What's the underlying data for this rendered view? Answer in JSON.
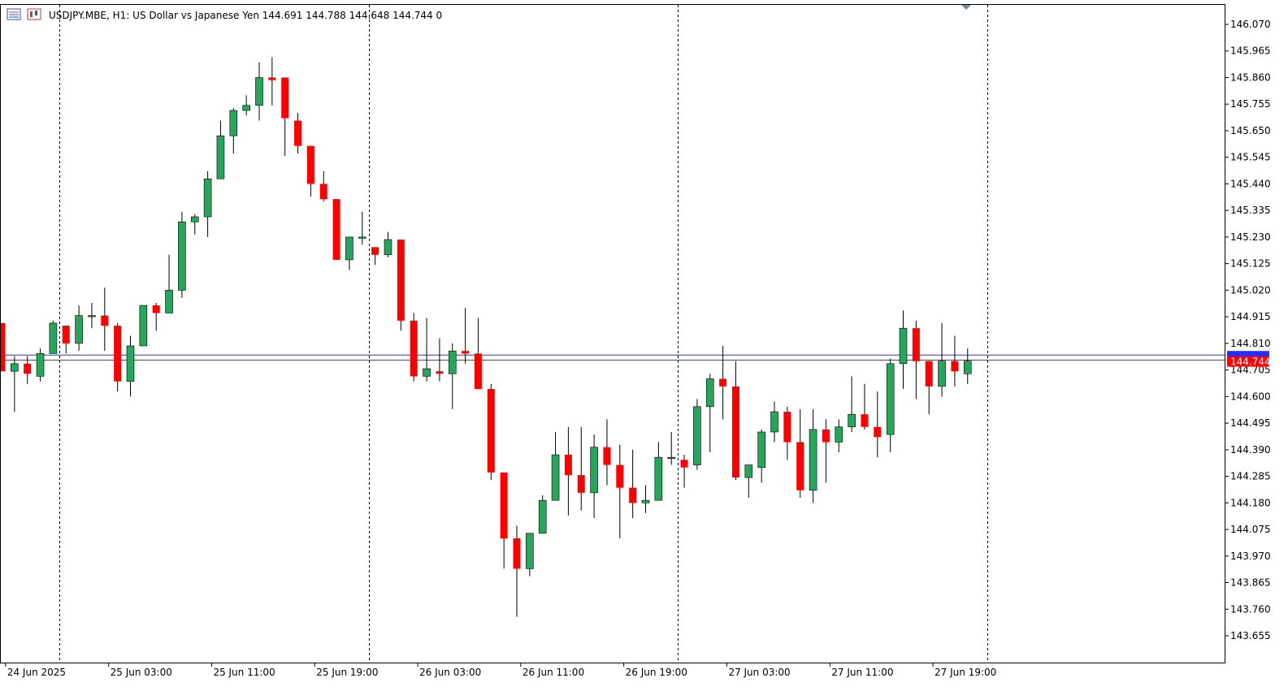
{
  "header": {
    "symbol_info": "USDJPY.MBE, H1:  US Dollar vs Japanese Yen  144.691 144.788 144.648 144.744  0",
    "icon_left": "chart-list-icon",
    "icon_right": "chart-type-icon"
  },
  "colors": {
    "bull": "#26a65b",
    "bear": "#ff0000",
    "bid_line": "#ff0000",
    "ask_line": "#1f2fff",
    "wick": "#000000",
    "grid_separator": "#000000",
    "frame": "#000000"
  },
  "price_tags": {
    "ask_value": "144.764",
    "bid_value": "144.744"
  },
  "chart_data": {
    "type": "candlestick",
    "title": "USDJPY.MBE, H1",
    "ylim": [
      143.56,
      146.13
    ],
    "y_ticks": [
      "146.070",
      "145.965",
      "145.860",
      "145.755",
      "145.650",
      "145.545",
      "145.440",
      "145.335",
      "145.230",
      "145.125",
      "145.020",
      "144.915",
      "144.810",
      "144.705",
      "144.600",
      "144.495",
      "144.390",
      "144.285",
      "144.180",
      "144.075",
      "143.970",
      "143.865",
      "143.760",
      "143.655"
    ],
    "x_ticks": [
      {
        "label": "24 Jun 2025",
        "index": 1
      },
      {
        "label": "25 Jun 03:00",
        "index": 9
      },
      {
        "label": "25 Jun 11:00",
        "index": 17
      },
      {
        "label": "25 Jun 19:00",
        "index": 25
      },
      {
        "label": "26 Jun 03:00",
        "index": 33
      },
      {
        "label": "26 Jun 11:00",
        "index": 41
      },
      {
        "label": "26 Jun 19:00",
        "index": 49
      },
      {
        "label": "27 Jun 03:00",
        "index": 57
      },
      {
        "label": "27 Jun 11:00",
        "index": 65
      },
      {
        "label": "27 Jun 19:00",
        "index": 73
      }
    ],
    "day_separators": [
      4.5,
      28.5,
      52.5,
      76.5
    ],
    "bid": 144.744,
    "ask": 144.764,
    "candles": [
      {
        "o": 144.89,
        "h": 144.89,
        "l": 144.7,
        "c": 144.7
      },
      {
        "o": 144.7,
        "h": 144.76,
        "l": 144.54,
        "c": 144.73
      },
      {
        "o": 144.73,
        "h": 144.76,
        "l": 144.65,
        "c": 144.69
      },
      {
        "o": 144.68,
        "h": 144.79,
        "l": 144.66,
        "c": 144.77
      },
      {
        "o": 144.77,
        "h": 144.9,
        "l": 144.77,
        "c": 144.89
      },
      {
        "o": 144.88,
        "h": 144.88,
        "l": 144.77,
        "c": 144.81
      },
      {
        "o": 144.81,
        "h": 144.96,
        "l": 144.78,
        "c": 144.92
      },
      {
        "o": 144.92,
        "h": 144.97,
        "l": 144.87,
        "c": 144.92
      },
      {
        "o": 144.92,
        "h": 145.03,
        "l": 144.78,
        "c": 144.88
      },
      {
        "o": 144.88,
        "h": 144.89,
        "l": 144.62,
        "c": 144.66
      },
      {
        "o": 144.66,
        "h": 144.84,
        "l": 144.6,
        "c": 144.8
      },
      {
        "o": 144.8,
        "h": 144.96,
        "l": 144.8,
        "c": 144.96
      },
      {
        "o": 144.96,
        "h": 144.97,
        "l": 144.86,
        "c": 144.93
      },
      {
        "o": 144.93,
        "h": 145.16,
        "l": 144.93,
        "c": 145.02
      },
      {
        "o": 145.02,
        "h": 145.33,
        "l": 144.99,
        "c": 145.29
      },
      {
        "o": 145.29,
        "h": 145.32,
        "l": 145.24,
        "c": 145.31
      },
      {
        "o": 145.31,
        "h": 145.49,
        "l": 145.23,
        "c": 145.46
      },
      {
        "o": 145.46,
        "h": 145.69,
        "l": 145.46,
        "c": 145.63
      },
      {
        "o": 145.63,
        "h": 145.74,
        "l": 145.56,
        "c": 145.73
      },
      {
        "o": 145.73,
        "h": 145.79,
        "l": 145.71,
        "c": 145.75
      },
      {
        "o": 145.75,
        "h": 145.92,
        "l": 145.69,
        "c": 145.86
      },
      {
        "o": 145.86,
        "h": 145.94,
        "l": 145.75,
        "c": 145.85
      },
      {
        "o": 145.86,
        "h": 145.86,
        "l": 145.55,
        "c": 145.7
      },
      {
        "o": 145.69,
        "h": 145.72,
        "l": 145.56,
        "c": 145.59
      },
      {
        "o": 145.59,
        "h": 145.59,
        "l": 145.39,
        "c": 145.44
      },
      {
        "o": 145.44,
        "h": 145.49,
        "l": 145.37,
        "c": 145.38
      },
      {
        "o": 145.38,
        "h": 145.38,
        "l": 145.14,
        "c": 145.14
      },
      {
        "o": 145.14,
        "h": 145.23,
        "l": 145.1,
        "c": 145.23
      },
      {
        "o": 145.23,
        "h": 145.33,
        "l": 145.2,
        "c": 145.23
      },
      {
        "o": 145.19,
        "h": 145.19,
        "l": 145.12,
        "c": 145.16
      },
      {
        "o": 145.16,
        "h": 145.25,
        "l": 145.15,
        "c": 145.22
      },
      {
        "o": 145.22,
        "h": 145.22,
        "l": 144.86,
        "c": 144.9
      },
      {
        "o": 144.9,
        "h": 144.93,
        "l": 144.66,
        "c": 144.68
      },
      {
        "o": 144.68,
        "h": 144.91,
        "l": 144.66,
        "c": 144.71
      },
      {
        "o": 144.7,
        "h": 144.83,
        "l": 144.66,
        "c": 144.69
      },
      {
        "o": 144.69,
        "h": 144.81,
        "l": 144.55,
        "c": 144.78
      },
      {
        "o": 144.78,
        "h": 144.95,
        "l": 144.73,
        "c": 144.77
      },
      {
        "o": 144.77,
        "h": 144.91,
        "l": 144.63,
        "c": 144.63
      },
      {
        "o": 144.63,
        "h": 144.65,
        "l": 144.27,
        "c": 144.3
      },
      {
        "o": 144.3,
        "h": 144.3,
        "l": 143.92,
        "c": 144.04
      },
      {
        "o": 144.04,
        "h": 144.09,
        "l": 143.73,
        "c": 143.92
      },
      {
        "o": 143.92,
        "h": 144.05,
        "l": 143.89,
        "c": 144.06
      },
      {
        "o": 144.06,
        "h": 144.21,
        "l": 144.06,
        "c": 144.19
      },
      {
        "o": 144.19,
        "h": 144.46,
        "l": 144.19,
        "c": 144.37
      },
      {
        "o": 144.37,
        "h": 144.48,
        "l": 144.13,
        "c": 144.29
      },
      {
        "o": 144.29,
        "h": 144.48,
        "l": 144.15,
        "c": 144.22
      },
      {
        "o": 144.22,
        "h": 144.45,
        "l": 144.12,
        "c": 144.4
      },
      {
        "o": 144.4,
        "h": 144.51,
        "l": 144.25,
        "c": 144.33
      },
      {
        "o": 144.33,
        "h": 144.41,
        "l": 144.04,
        "c": 144.24
      },
      {
        "o": 144.24,
        "h": 144.39,
        "l": 144.12,
        "c": 144.18
      },
      {
        "o": 144.18,
        "h": 144.25,
        "l": 144.14,
        "c": 144.19
      },
      {
        "o": 144.19,
        "h": 144.42,
        "l": 144.19,
        "c": 144.36
      },
      {
        "o": 144.36,
        "h": 144.46,
        "l": 144.33,
        "c": 144.36
      },
      {
        "o": 144.35,
        "h": 144.37,
        "l": 144.24,
        "c": 144.32
      },
      {
        "o": 144.33,
        "h": 144.59,
        "l": 144.31,
        "c": 144.56
      },
      {
        "o": 144.56,
        "h": 144.69,
        "l": 144.38,
        "c": 144.67
      },
      {
        "o": 144.67,
        "h": 144.8,
        "l": 144.51,
        "c": 144.64
      },
      {
        "o": 144.64,
        "h": 144.74,
        "l": 144.27,
        "c": 144.28
      },
      {
        "o": 144.28,
        "h": 144.33,
        "l": 144.2,
        "c": 144.33
      },
      {
        "o": 144.32,
        "h": 144.47,
        "l": 144.26,
        "c": 144.46
      },
      {
        "o": 144.46,
        "h": 144.58,
        "l": 144.42,
        "c": 144.54
      },
      {
        "o": 144.54,
        "h": 144.56,
        "l": 144.35,
        "c": 144.42
      },
      {
        "o": 144.42,
        "h": 144.55,
        "l": 144.2,
        "c": 144.23
      },
      {
        "o": 144.23,
        "h": 144.55,
        "l": 144.18,
        "c": 144.47
      },
      {
        "o": 144.47,
        "h": 144.51,
        "l": 144.26,
        "c": 144.42
      },
      {
        "o": 144.42,
        "h": 144.51,
        "l": 144.38,
        "c": 144.48
      },
      {
        "o": 144.48,
        "h": 144.68,
        "l": 144.46,
        "c": 144.53
      },
      {
        "o": 144.53,
        "h": 144.65,
        "l": 144.47,
        "c": 144.48
      },
      {
        "o": 144.48,
        "h": 144.62,
        "l": 144.36,
        "c": 144.44
      },
      {
        "o": 144.45,
        "h": 144.75,
        "l": 144.38,
        "c": 144.73
      },
      {
        "o": 144.73,
        "h": 144.94,
        "l": 144.63,
        "c": 144.87
      },
      {
        "o": 144.87,
        "h": 144.9,
        "l": 144.59,
        "c": 144.74
      },
      {
        "o": 144.74,
        "h": 144.74,
        "l": 144.53,
        "c": 144.64
      },
      {
        "o": 144.64,
        "h": 144.89,
        "l": 144.6,
        "c": 144.74
      },
      {
        "o": 144.74,
        "h": 144.84,
        "l": 144.64,
        "c": 144.7
      },
      {
        "o": 144.69,
        "h": 144.79,
        "l": 144.65,
        "c": 144.74
      }
    ]
  }
}
